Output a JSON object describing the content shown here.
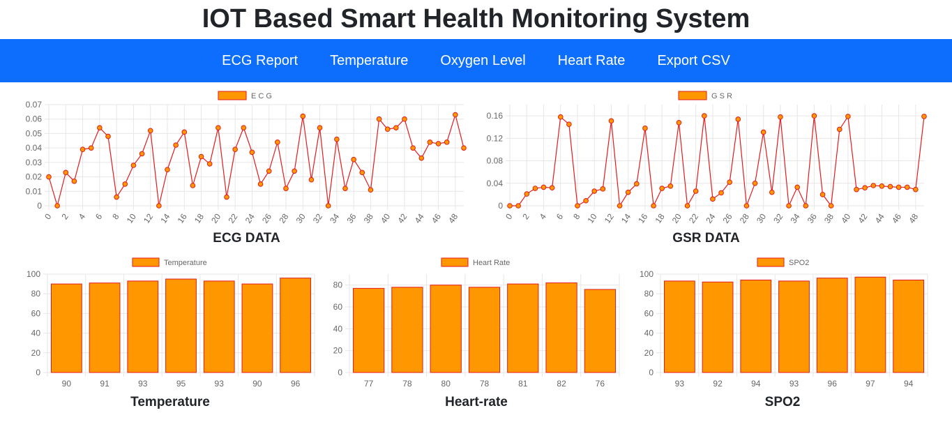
{
  "page": {
    "title": "IOT Based Smart Health Monitoring System"
  },
  "nav": {
    "items": [
      {
        "label": "ECG Report"
      },
      {
        "label": "Temperature"
      },
      {
        "label": "Oxygen Level"
      },
      {
        "label": "Heart Rate"
      },
      {
        "label": "Export CSV"
      }
    ]
  },
  "colors": {
    "nav_bg": "#0d6efd",
    "fill": "#ff9800",
    "stroke": "#e31a1c",
    "grid": "#e6e6e6",
    "tick": "#666666"
  },
  "chart_data": [
    {
      "id": "ecg",
      "type": "line",
      "title": "ECG DATA",
      "legend": "E C G",
      "legend_position": "top",
      "grid": true,
      "ylim": [
        0,
        0.07
      ],
      "yticks": [
        0,
        0.01,
        0.02,
        0.03,
        0.04,
        0.05,
        0.06,
        0.07
      ],
      "ytick_labels": [
        "0",
        "0.01",
        "0.02",
        "0.03",
        "0.04",
        "0.05",
        "0.06",
        "0.07"
      ],
      "x": [
        0,
        1,
        2,
        3,
        4,
        5,
        6,
        7,
        8,
        9,
        10,
        11,
        12,
        13,
        14,
        15,
        16,
        17,
        18,
        19,
        20,
        21,
        22,
        23,
        24,
        25,
        26,
        27,
        28,
        29,
        30,
        31,
        32,
        33,
        34,
        35,
        36,
        37,
        38,
        39,
        40,
        41,
        42,
        43,
        44,
        45,
        46,
        47,
        48,
        49
      ],
      "xtick_labels": [
        "0",
        "2",
        "4",
        "6",
        "8",
        "10",
        "12",
        "14",
        "16",
        "18",
        "20",
        "22",
        "24",
        "26",
        "28",
        "30",
        "32",
        "34",
        "36",
        "38",
        "40",
        "42",
        "44",
        "46",
        "48"
      ],
      "values": [
        0.02,
        0,
        0.023,
        0.017,
        0.039,
        0.04,
        0.054,
        0.048,
        0.006,
        0.015,
        0.028,
        0.036,
        0.052,
        0,
        0.025,
        0.042,
        0.051,
        0.014,
        0.034,
        0.029,
        0.054,
        0.006,
        0.039,
        0.054,
        0.037,
        0.015,
        0.024,
        0.044,
        0.012,
        0.024,
        0.062,
        0.018,
        0.054,
        0,
        0.046,
        0.012,
        0.032,
        0.023,
        0.011,
        0.06,
        0.053,
        0.054,
        0.06,
        0.04,
        0.033,
        0.044,
        0.043,
        0.044,
        0.063,
        0.04
      ]
    },
    {
      "id": "gsr",
      "type": "line",
      "title": "GSR DATA",
      "legend": "G S R",
      "legend_position": "top",
      "grid": true,
      "ylim": [
        0,
        0.18
      ],
      "yticks": [
        0,
        0.04,
        0.08,
        0.12,
        0.16
      ],
      "ytick_labels": [
        "0",
        "0.04",
        "0.08",
        "0.12",
        "0.16"
      ],
      "x": [
        0,
        1,
        2,
        3,
        4,
        5,
        6,
        7,
        8,
        9,
        10,
        11,
        12,
        13,
        14,
        15,
        16,
        17,
        18,
        19,
        20,
        21,
        22,
        23,
        24,
        25,
        26,
        27,
        28,
        29,
        30,
        31,
        32,
        33,
        34,
        35,
        36,
        37,
        38,
        39,
        40,
        41,
        42,
        43,
        44,
        45,
        46,
        47,
        48,
        49
      ],
      "xtick_labels": [
        "0",
        "2",
        "4",
        "6",
        "8",
        "10",
        "12",
        "14",
        "16",
        "18",
        "20",
        "22",
        "24",
        "26",
        "28",
        "30",
        "32",
        "34",
        "36",
        "38",
        "40",
        "42",
        "44",
        "46",
        "48"
      ],
      "values": [
        0,
        0,
        0.021,
        0.031,
        0.033,
        0.032,
        0.158,
        0.145,
        0,
        0.009,
        0.026,
        0.03,
        0.151,
        0,
        0.024,
        0.039,
        0.138,
        0,
        0.031,
        0.035,
        0.148,
        0,
        0.026,
        0.16,
        0.012,
        0.023,
        0.042,
        0.154,
        0,
        0.04,
        0.131,
        0.024,
        0.158,
        0,
        0.033,
        0,
        0.16,
        0.02,
        0,
        0.136,
        0.159,
        0.029,
        0.032,
        0.036,
        0.035,
        0.034,
        0.033,
        0.033,
        0.029,
        0.159
      ]
    },
    {
      "id": "temperature",
      "type": "bar",
      "title": "Temperature",
      "legend": "Temperature",
      "legend_position": "top",
      "grid": true,
      "ylim": [
        0,
        100
      ],
      "yticks": [
        0,
        20,
        40,
        60,
        80,
        100
      ],
      "ytick_labels": [
        "0",
        "20",
        "40",
        "60",
        "80",
        "100"
      ],
      "categories": [
        "90",
        "91",
        "93",
        "95",
        "93",
        "90",
        "96"
      ],
      "values": [
        90,
        91,
        93,
        95,
        93,
        90,
        96
      ]
    },
    {
      "id": "heartrate",
      "type": "bar",
      "title": "Heart-rate",
      "legend": "Heart Rate",
      "legend_position": "top",
      "grid": true,
      "ylim": [
        0,
        90
      ],
      "yticks": [
        0,
        20,
        40,
        60,
        80
      ],
      "ytick_labels": [
        "0",
        "20",
        "40",
        "60",
        "80"
      ],
      "categories": [
        "77",
        "78",
        "80",
        "78",
        "81",
        "82",
        "76"
      ],
      "values": [
        77,
        78,
        80,
        78,
        81,
        82,
        76
      ]
    },
    {
      "id": "spo2",
      "type": "bar",
      "title": "SPO2",
      "legend": "SPO2",
      "legend_position": "top",
      "grid": true,
      "ylim": [
        0,
        100
      ],
      "yticks": [
        0,
        20,
        40,
        60,
        80,
        100
      ],
      "ytick_labels": [
        "0",
        "20",
        "40",
        "60",
        "80",
        "100"
      ],
      "categories": [
        "93",
        "92",
        "94",
        "93",
        "96",
        "97",
        "94"
      ],
      "values": [
        93,
        92,
        94,
        93,
        96,
        97,
        94
      ]
    }
  ]
}
